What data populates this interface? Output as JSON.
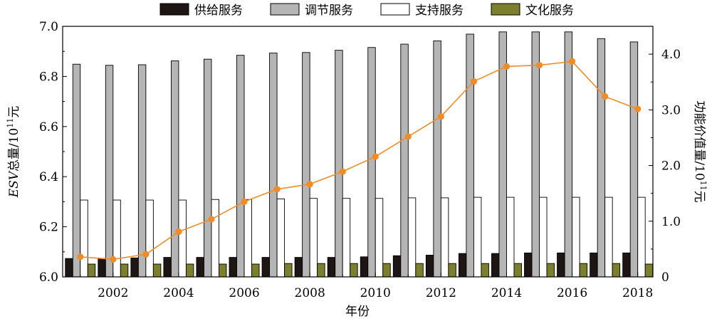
{
  "chart_data": {
    "type": "bar",
    "title": "",
    "categories": [
      "2001",
      "2002",
      "2003",
      "2004",
      "2005",
      "2006",
      "2007",
      "2008",
      "2009",
      "2010",
      "2011",
      "2012",
      "2013",
      "2014",
      "2015",
      "2016",
      "2017",
      "2018"
    ],
    "xtick_labels": [
      "2002",
      "2004",
      "2006",
      "2008",
      "2010",
      "2012",
      "2014",
      "2016",
      "2018"
    ],
    "xlabel": "年份",
    "ylabel_left": {
      "prefix": "ESV",
      "middle": "总量/10",
      "sup": "11",
      "suffix": "元"
    },
    "ylabel_right": {
      "prefix": "功能价值量/10",
      "sup": "11",
      "suffix": "元"
    },
    "ylim_left": [
      6.0,
      7.0
    ],
    "yticks_left": [
      "6.0",
      "6.2",
      "6.4",
      "6.6",
      "6.8",
      "7.0"
    ],
    "ylim_right": [
      0,
      4.5
    ],
    "yticks_right": [
      "0",
      "1.0",
      "2.0",
      "3.0",
      "4.0"
    ],
    "grid": false,
    "legend_position": "top",
    "series": [
      {
        "name": "供给服务",
        "axis": "right",
        "kind": "bar",
        "color": "#1e1614",
        "values": [
          0.33,
          0.33,
          0.34,
          0.35,
          0.35,
          0.35,
          0.35,
          0.35,
          0.35,
          0.36,
          0.38,
          0.39,
          0.42,
          0.42,
          0.43,
          0.43,
          0.43,
          0.43
        ]
      },
      {
        "name": "调节服务",
        "axis": "right",
        "kind": "bar",
        "color": "#b5b5b5",
        "values": [
          3.82,
          3.8,
          3.81,
          3.88,
          3.91,
          3.98,
          4.02,
          4.03,
          4.07,
          4.12,
          4.18,
          4.24,
          4.36,
          4.4,
          4.4,
          4.4,
          4.28,
          4.22
        ]
      },
      {
        "name": "支持服务",
        "axis": "right",
        "kind": "bar",
        "color": "#ffffff",
        "values": [
          1.38,
          1.38,
          1.38,
          1.38,
          1.39,
          1.39,
          1.4,
          1.41,
          1.41,
          1.41,
          1.42,
          1.42,
          1.43,
          1.43,
          1.43,
          1.43,
          1.43,
          1.43
        ]
      },
      {
        "name": "文化服务",
        "axis": "right",
        "kind": "bar",
        "color": "#7b7f2e",
        "values": [
          0.23,
          0.23,
          0.23,
          0.23,
          0.23,
          0.23,
          0.24,
          0.24,
          0.24,
          0.24,
          0.24,
          0.24,
          0.24,
          0.24,
          0.24,
          0.24,
          0.24,
          0.23
        ]
      },
      {
        "axis": "left",
        "kind": "line",
        "color": "#f08c28",
        "values": [
          6.08,
          6.07,
          6.09,
          6.18,
          6.23,
          6.3,
          6.35,
          6.37,
          6.42,
          6.48,
          6.56,
          6.64,
          6.78,
          6.84,
          6.845,
          6.86,
          6.72,
          6.67
        ]
      }
    ]
  }
}
